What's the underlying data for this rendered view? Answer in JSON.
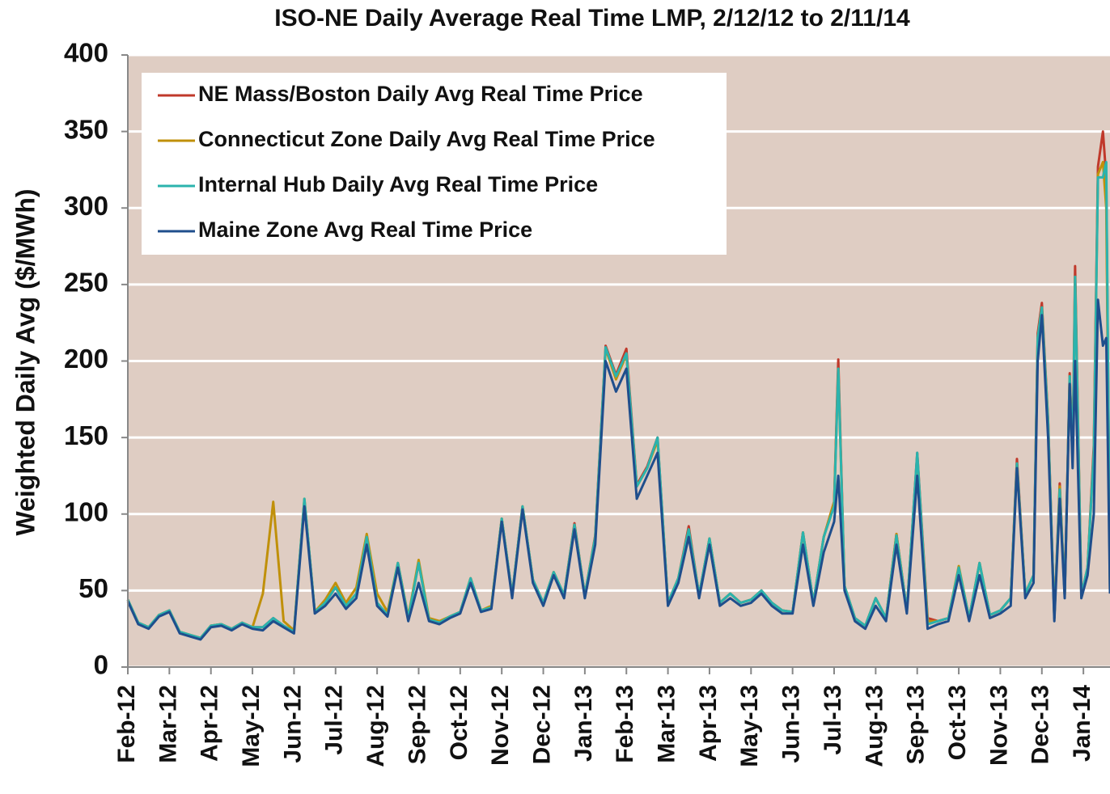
{
  "chart_data": {
    "type": "line",
    "title": "ISO-NE Daily Average Real Time LMP, 2/12/12 to 2/11/14",
    "y_label": "Weighted Daily Avg ($/MWh)",
    "x": [
      0,
      0.25,
      0.5,
      0.75,
      1,
      1.25,
      1.5,
      1.75,
      2,
      2.25,
      2.5,
      2.75,
      3,
      3.25,
      3.5,
      3.75,
      4,
      4.25,
      4.5,
      4.75,
      5,
      5.25,
      5.5,
      5.75,
      6,
      6.25,
      6.5,
      6.75,
      7,
      7.25,
      7.5,
      7.75,
      8,
      8.25,
      8.5,
      8.75,
      9,
      9.25,
      9.5,
      9.75,
      10,
      10.25,
      10.5,
      10.75,
      11,
      11.25,
      11.5,
      11.75,
      12,
      12.25,
      12.5,
      12.75,
      13,
      13.25,
      13.5,
      13.75,
      14,
      14.25,
      14.5,
      14.75,
      15,
      15.25,
      15.5,
      15.75,
      16,
      16.25,
      16.5,
      16.75,
      17,
      17.1,
      17.25,
      17.5,
      17.75,
      18,
      18.25,
      18.5,
      18.75,
      19,
      19.25,
      19.5,
      19.75,
      20,
      20.25,
      20.5,
      20.75,
      21,
      21.25,
      21.4,
      21.6,
      21.8,
      21.9,
      22,
      22.15,
      22.3,
      22.43,
      22.55,
      22.67,
      22.74,
      22.8,
      22.95,
      23.1,
      23.25,
      23.35,
      23.47,
      23.55,
      23.64
    ],
    "series": [
      {
        "name": "NE Mass/Boston Daily Avg Real Time Price",
        "color": "#c0392b",
        "values": [
          44,
          29,
          26,
          34,
          37,
          23,
          21,
          19,
          27,
          28,
          25,
          29,
          26,
          26,
          32,
          27,
          23,
          109,
          36,
          42,
          52,
          40,
          48,
          85,
          42,
          34,
          68,
          32,
          68,
          31,
          29,
          33,
          36,
          58,
          37,
          39,
          97,
          47,
          105,
          57,
          42,
          62,
          47,
          94,
          47,
          86,
          210,
          191,
          208,
          119,
          131,
          150,
          42,
          58,
          92,
          47,
          84,
          42,
          48,
          42,
          44,
          50,
          42,
          37,
          36,
          88,
          42,
          85,
          108,
          201,
          53,
          32,
          27,
          45,
          32,
          87,
          37,
          140,
          32,
          30,
          32,
          65,
          32,
          68,
          34,
          37,
          45,
          136,
          48,
          60,
          218,
          238,
          162,
          32,
          120,
          47,
          192,
          137,
          262,
          47,
          65,
          145,
          327,
          350,
          320,
          50
        ]
      },
      {
        "name": "Connecticut Zone Daily Avg Real Time Price",
        "color": "#c0900a",
        "values": [
          44,
          29,
          26,
          34,
          37,
          23,
          21,
          19,
          27,
          28,
          25,
          29,
          26,
          48,
          108,
          30,
          24,
          110,
          36,
          44,
          55,
          42,
          52,
          87,
          48,
          36,
          68,
          33,
          70,
          32,
          30,
          33,
          36,
          58,
          37,
          40,
          97,
          47,
          105,
          57,
          42,
          62,
          47,
          93,
          47,
          85,
          208,
          188,
          204,
          118,
          130,
          148,
          42,
          58,
          90,
          47,
          84,
          42,
          48,
          42,
          44,
          50,
          42,
          37,
          36,
          88,
          42,
          85,
          108,
          195,
          53,
          32,
          27,
          45,
          32,
          87,
          37,
          138,
          30,
          30,
          32,
          66,
          32,
          68,
          34,
          37,
          45,
          133,
          48,
          60,
          215,
          235,
          160,
          32,
          118,
          47,
          190,
          135,
          255,
          47,
          65,
          140,
          322,
          330,
          300,
          50
        ]
      },
      {
        "name": "Internal Hub Daily Avg Real Time Price",
        "color": "#2bb3ad",
        "values": [
          44,
          29,
          26,
          34,
          37,
          23,
          21,
          19,
          27,
          28,
          25,
          29,
          26,
          26,
          32,
          27,
          23,
          110,
          36,
          42,
          52,
          40,
          48,
          85,
          42,
          34,
          68,
          32,
          68,
          31,
          29,
          33,
          36,
          58,
          37,
          39,
          97,
          47,
          105,
          57,
          42,
          62,
          47,
          93,
          47,
          85,
          209,
          190,
          205,
          118,
          130,
          150,
          42,
          58,
          90,
          47,
          84,
          42,
          48,
          42,
          44,
          50,
          42,
          37,
          36,
          88,
          42,
          85,
          105,
          195,
          53,
          32,
          27,
          45,
          32,
          86,
          37,
          140,
          28,
          30,
          32,
          65,
          32,
          68,
          34,
          37,
          45,
          133,
          48,
          60,
          215,
          235,
          160,
          32,
          116,
          47,
          190,
          135,
          255,
          47,
          65,
          140,
          320,
          320,
          330,
          50
        ]
      },
      {
        "name": "Maine Zone Avg Real Time Price",
        "color": "#1f4e8c",
        "values": [
          43,
          28,
          25,
          33,
          36,
          22,
          20,
          18,
          26,
          27,
          24,
          28,
          25,
          24,
          30,
          26,
          22,
          105,
          35,
          40,
          48,
          38,
          45,
          80,
          40,
          33,
          65,
          30,
          55,
          30,
          28,
          32,
          35,
          55,
          36,
          38,
          95,
          45,
          103,
          55,
          40,
          60,
          45,
          90,
          45,
          80,
          200,
          180,
          195,
          110,
          125,
          140,
          40,
          55,
          85,
          45,
          80,
          40,
          45,
          40,
          42,
          48,
          40,
          35,
          35,
          80,
          40,
          75,
          95,
          125,
          50,
          30,
          25,
          40,
          30,
          80,
          35,
          125,
          25,
          28,
          30,
          60,
          30,
          60,
          32,
          35,
          40,
          130,
          45,
          55,
          200,
          230,
          150,
          30,
          110,
          45,
          185,
          130,
          200,
          45,
          60,
          100,
          240,
          210,
          215,
          48
        ]
      }
    ],
    "xlim": [
      0,
      23.64
    ],
    "xticks": [
      {
        "value": 0,
        "label": "Feb-12"
      },
      {
        "value": 1,
        "label": "Mar-12"
      },
      {
        "value": 2,
        "label": "Apr-12"
      },
      {
        "value": 3,
        "label": "May-12"
      },
      {
        "value": 4,
        "label": "Jun-12"
      },
      {
        "value": 5,
        "label": "Jul-12"
      },
      {
        "value": 6,
        "label": "Aug-12"
      },
      {
        "value": 7,
        "label": "Sep-12"
      },
      {
        "value": 8,
        "label": "Oct-12"
      },
      {
        "value": 9,
        "label": "Nov-12"
      },
      {
        "value": 10,
        "label": "Dec-12"
      },
      {
        "value": 11,
        "label": "Jan-13"
      },
      {
        "value": 12,
        "label": "Feb-13"
      },
      {
        "value": 13,
        "label": "Mar-13"
      },
      {
        "value": 14,
        "label": "Apr-13"
      },
      {
        "value": 15,
        "label": "May-13"
      },
      {
        "value": 16,
        "label": "Jun-13"
      },
      {
        "value": 17,
        "label": "Jul-13"
      },
      {
        "value": 18,
        "label": "Aug-13"
      },
      {
        "value": 19,
        "label": "Sep-13"
      },
      {
        "value": 20,
        "label": "Oct-13"
      },
      {
        "value": 21,
        "label": "Nov-13"
      },
      {
        "value": 22,
        "label": "Dec-13"
      },
      {
        "value": 23,
        "label": "Jan-14"
      }
    ],
    "ylim": [
      0,
      400
    ],
    "yticks": [
      0,
      50,
      100,
      150,
      200,
      250,
      300,
      350,
      400
    ],
    "grid": true,
    "legend": "upper left"
  }
}
